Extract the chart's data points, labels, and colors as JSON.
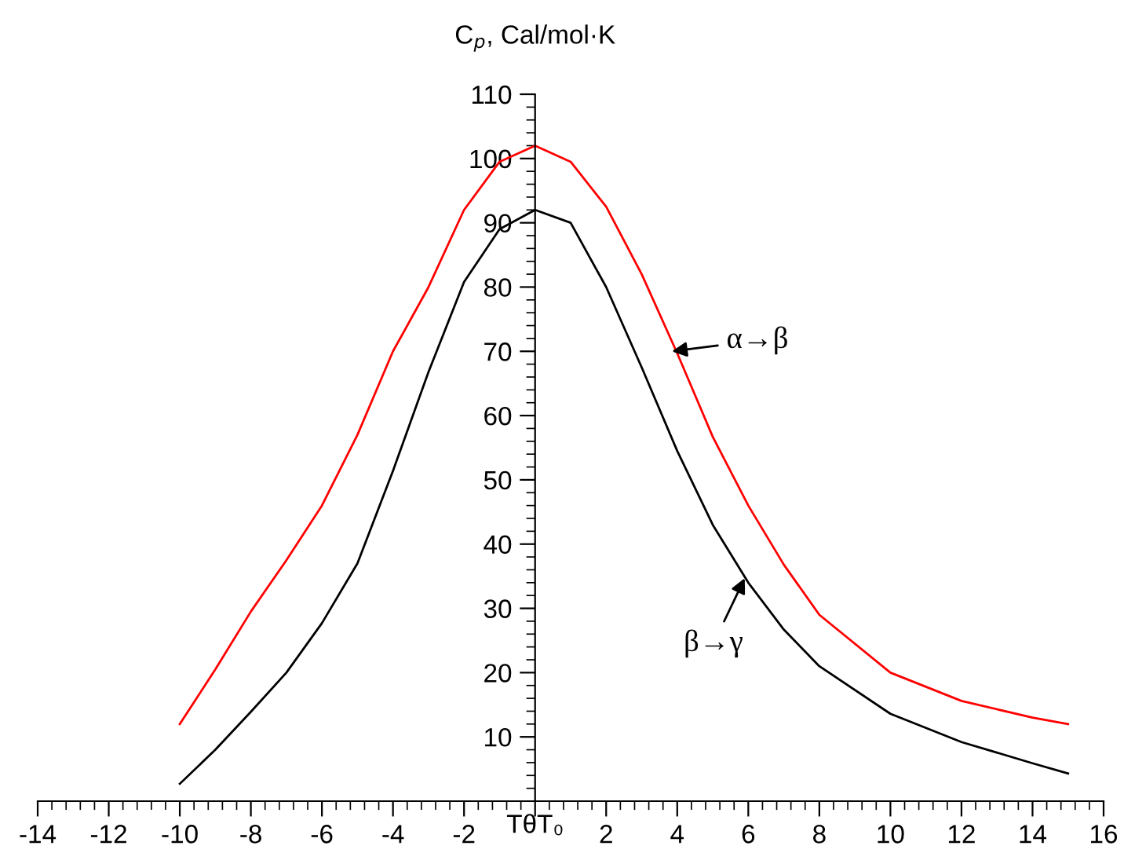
{
  "chart_data": {
    "type": "line",
    "xlabel": "TθT₀",
    "ylabel": "C$_{p}$, Cal/mol·K",
    "xlim": [
      -14,
      16
    ],
    "ylim": [
      0,
      110
    ],
    "xticks": [
      -14,
      -12,
      -10,
      -8,
      -6,
      -4,
      -2,
      {
        "value": 0,
        "label": null
      },
      2,
      4,
      6,
      8,
      10,
      12,
      14,
      16
    ],
    "yticks": [
      10,
      20,
      30,
      40,
      50,
      60,
      70,
      80,
      90,
      100,
      110
    ],
    "grid": false,
    "line_style": "solid",
    "marker": "none",
    "series": [
      {
        "color": "#ff0000",
        "x": [
          -10,
          -9,
          -8,
          -7,
          -6,
          -5,
          -4,
          -3,
          -2,
          -1,
          0,
          1,
          2,
          3,
          4,
          5,
          6,
          7,
          8,
          10,
          12,
          14,
          15
        ],
        "values": [
          12,
          20.5,
          29.5,
          37.5,
          46,
          57,
          70,
          80,
          92,
          99.5,
          102,
          99.5,
          92.5,
          82,
          69.7,
          56.7,
          46,
          36.8,
          29,
          20,
          15.6,
          13,
          12
        ]
      },
      {
        "color": "#000000",
        "x": [
          -10,
          -9,
          -8,
          -7,
          -6,
          -5,
          -4,
          -3,
          -2,
          -1,
          0,
          1,
          2,
          3,
          4,
          5,
          6,
          7,
          8,
          10,
          12,
          14,
          15
        ],
        "values": [
          2.7,
          8,
          13.9,
          20,
          27.7,
          37,
          51.4,
          66.8,
          80.8,
          89,
          92,
          90,
          80,
          67.5,
          54.5,
          43,
          34,
          26.7,
          21,
          13.6,
          9.2,
          5.9,
          4.3
        ]
      }
    ],
    "annotations": [
      {
        "text": "α→β",
        "x": 3.85,
        "y": 70
      },
      {
        "text": "β→γ",
        "x": 5.9,
        "y": 34.7
      }
    ]
  }
}
